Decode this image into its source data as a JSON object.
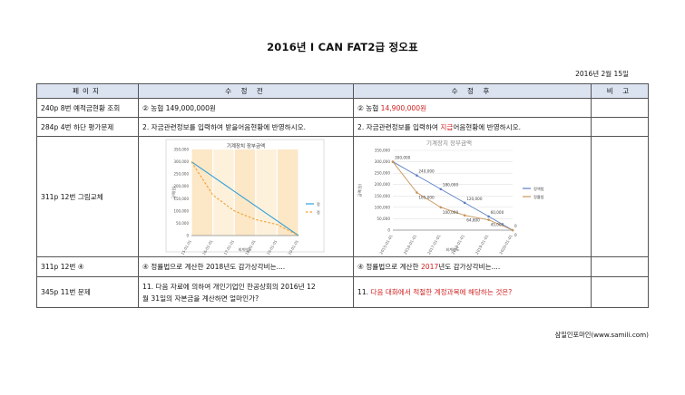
{
  "title": "2016년 I CAN FAT2급 정오표",
  "date": "2016년 2월 15일",
  "headers": [
    "페이지",
    "수 정 전",
    "수 정 후",
    "비 고"
  ],
  "rows": [
    {
      "page": "240p 8번 예적금현황 조회",
      "before": "② 농협   149,000,000원",
      "after_prefix": "② 농협   ",
      "after_red": "14,900,000원",
      "after_suffix": ""
    },
    {
      "page": "284p 4번 하단 평가문제",
      "before": "2. 자금관련정보를 입력하여 받을어음현황에 반영하시오.",
      "after_prefix": "2. 자금관련정보를 입력하여 ",
      "after_red": "지급",
      "after_suffix": "어음현황에 반영하시오."
    },
    {
      "page": "311p 12번 그림교체"
    },
    {
      "page": "311p 12번 ④",
      "before": "④ 정률법으로 계산한 2018년도 감가상각비는....",
      "after_prefix": "④ 정률법으로 계산한 ",
      "after_red": "2017",
      "after_suffix": "년도 감가상각비는...."
    },
    {
      "page": "345p 11번 문제",
      "before": "11. 다음 자료에 의하여 개인기업인 한공상회의 2016년 12\n월 31일의 자본금을 계산하면 얼마인가?",
      "after_prefix": "11. ",
      "after_red": "다음 대화에서 적절한 계정과목에 해당하는 것은?",
      "after_suffix": ""
    }
  ],
  "footer": "삼일인포마인(www.samili.com)",
  "chart_data": [
    {
      "type": "line",
      "title": "기계장치 장부금액",
      "xlabel": "회계연도",
      "ylabel": "금액(원)",
      "categories": [
        "2015-01-01",
        "2016-01-01",
        "2017-01-01",
        "2018-01-01",
        "2019-01-01",
        "2020-01-01"
      ],
      "ylim": [
        0,
        350000
      ],
      "yticks": [
        "0",
        "50,000",
        "100,000",
        "150,000",
        "200,000",
        "250,000",
        "300,000",
        "350,000"
      ],
      "series": [
        {
          "name": "정",
          "color": "#2e9fd8",
          "dash": false,
          "values": [
            300000,
            240000,
            180000,
            120000,
            60000,
            0
          ]
        },
        {
          "name": "정",
          "color": "#f0a030",
          "dash": true,
          "values": [
            300000,
            165000,
            100000,
            64800,
            45000,
            0
          ]
        }
      ],
      "legend": "right",
      "grid": "vertical-bands"
    },
    {
      "type": "line",
      "title": "기계장치 장부금액",
      "xlabel": "회계연도",
      "ylabel": "금액(원)",
      "categories": [
        "2015-01-01",
        "2016-01-01",
        "2017-01-01",
        "2018-01-01",
        "2019-01-01",
        "2020-01-01"
      ],
      "ylim": [
        0,
        350000
      ],
      "yticks": [
        "0",
        "50,000",
        "100,000",
        "150,000",
        "200,000",
        "250,000",
        "300,000",
        "350,000"
      ],
      "series": [
        {
          "name": "정액법",
          "color": "#5b7fc4",
          "dash": false,
          "values": [
            300000,
            240000,
            180000,
            120000,
            60000,
            0
          ],
          "labels": [
            "300,000",
            "240,000",
            "180,000",
            "120,000",
            "60,000",
            "0"
          ]
        },
        {
          "name": "정률법",
          "color": "#c8955a",
          "dash": false,
          "values": [
            300000,
            165000,
            100000,
            64800,
            45000,
            0
          ],
          "labels": [
            "",
            "165,000",
            "100,000",
            "64,800",
            "45,000",
            "0"
          ]
        }
      ],
      "legend": "right",
      "grid": "horizontal"
    }
  ]
}
